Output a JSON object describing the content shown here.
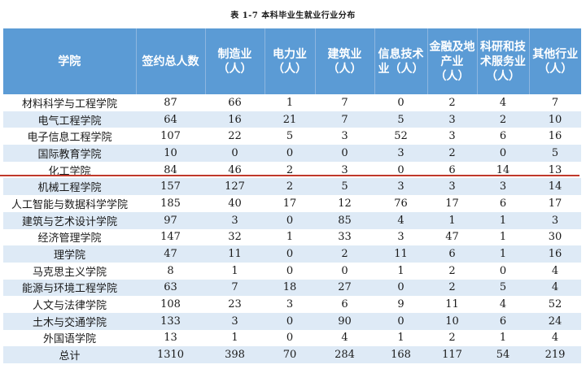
{
  "caption": "表 1-7  本科毕业生就业行业分布",
  "headers": [
    "学院",
    "签约总人数",
    "制造业（人）",
    "电力业（人）",
    "建筑业（人）",
    "信息技术业（人）",
    "金融及地产业（人）",
    "科研和技术服务业（人）",
    "其他行业（人）"
  ],
  "rows": [
    [
      "材料科学与工程学院",
      "87",
      "66",
      "1",
      "7",
      "0",
      "2",
      "4",
      "7"
    ],
    [
      "电气工程学院",
      "64",
      "16",
      "21",
      "7",
      "5",
      "3",
      "2",
      "10"
    ],
    [
      "电子信息工程学院",
      "107",
      "22",
      "5",
      "3",
      "52",
      "3",
      "6",
      "16"
    ],
    [
      "国际教育学院",
      "10",
      "0",
      "0",
      "0",
      "3",
      "2",
      "0",
      "5"
    ],
    [
      "化工学院",
      "84",
      "46",
      "2",
      "3",
      "0",
      "6",
      "14",
      "13"
    ],
    [
      "机械工程学院",
      "157",
      "127",
      "2",
      "5",
      "3",
      "3",
      "3",
      "14"
    ],
    [
      "人工智能与数据科学学院",
      "185",
      "40",
      "17",
      "12",
      "76",
      "17",
      "6",
      "17"
    ],
    [
      "建筑与艺术设计学院",
      "97",
      "3",
      "0",
      "85",
      "4",
      "1",
      "1",
      "3"
    ],
    [
      "经济管理学院",
      "147",
      "32",
      "1",
      "33",
      "3",
      "47",
      "1",
      "30"
    ],
    [
      "理学院",
      "47",
      "11",
      "0",
      "2",
      "11",
      "6",
      "1",
      "16"
    ],
    [
      "马克思主义学院",
      "8",
      "1",
      "0",
      "0",
      "1",
      "2",
      "0",
      "4"
    ],
    [
      "能源与环境工程学院",
      "63",
      "7",
      "18",
      "27",
      "0",
      "2",
      "5",
      "4"
    ],
    [
      "人文与法律学院",
      "108",
      "23",
      "3",
      "6",
      "9",
      "11",
      "4",
      "52"
    ],
    [
      "土木与交通学院",
      "133",
      "3",
      "0",
      "90",
      "0",
      "10",
      "6",
      "24"
    ],
    [
      "外国语学院",
      "13",
      "1",
      "0",
      "4",
      "1",
      "2",
      "1",
      "4"
    ],
    [
      "总计",
      "1310",
      "398",
      "70",
      "284",
      "168",
      "117",
      "54",
      "219"
    ]
  ],
  "colors": {
    "header_bg": "#5b9bd5",
    "alt_row_bg": "#deeaf6",
    "underline": "#c0392b"
  }
}
